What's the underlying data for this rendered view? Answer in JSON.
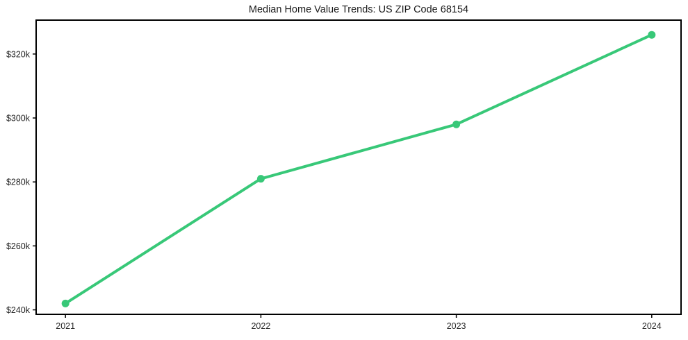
{
  "chart_data": {
    "type": "line",
    "title": "Median Home Value Trends: US ZIP Code 68154",
    "x": [
      2021,
      2022,
      2023,
      2024
    ],
    "x_tick_labels": [
      "2021",
      "2022",
      "2023",
      "2024"
    ],
    "series": [
      {
        "name": "Median home value",
        "values": [
          242000,
          281000,
          298000,
          326000
        ]
      }
    ],
    "y_ticks": [
      {
        "value": 240000,
        "label": "$240k"
      },
      {
        "value": 260000,
        "label": "$260k"
      },
      {
        "value": 280000,
        "label": "$280k"
      },
      {
        "value": 300000,
        "label": "$300k"
      },
      {
        "value": 320000,
        "label": "$320k"
      }
    ],
    "xlim": [
      2020.85,
      2024.15
    ],
    "ylim": [
      238600,
      330600
    ],
    "grid": false,
    "legend": "none",
    "marker": "circle",
    "line_color": "#38c878",
    "axis_color": "#000000",
    "tick_label_color": "#262626",
    "title_color": "#1a1a1a",
    "background_color": "#ffffff"
  }
}
